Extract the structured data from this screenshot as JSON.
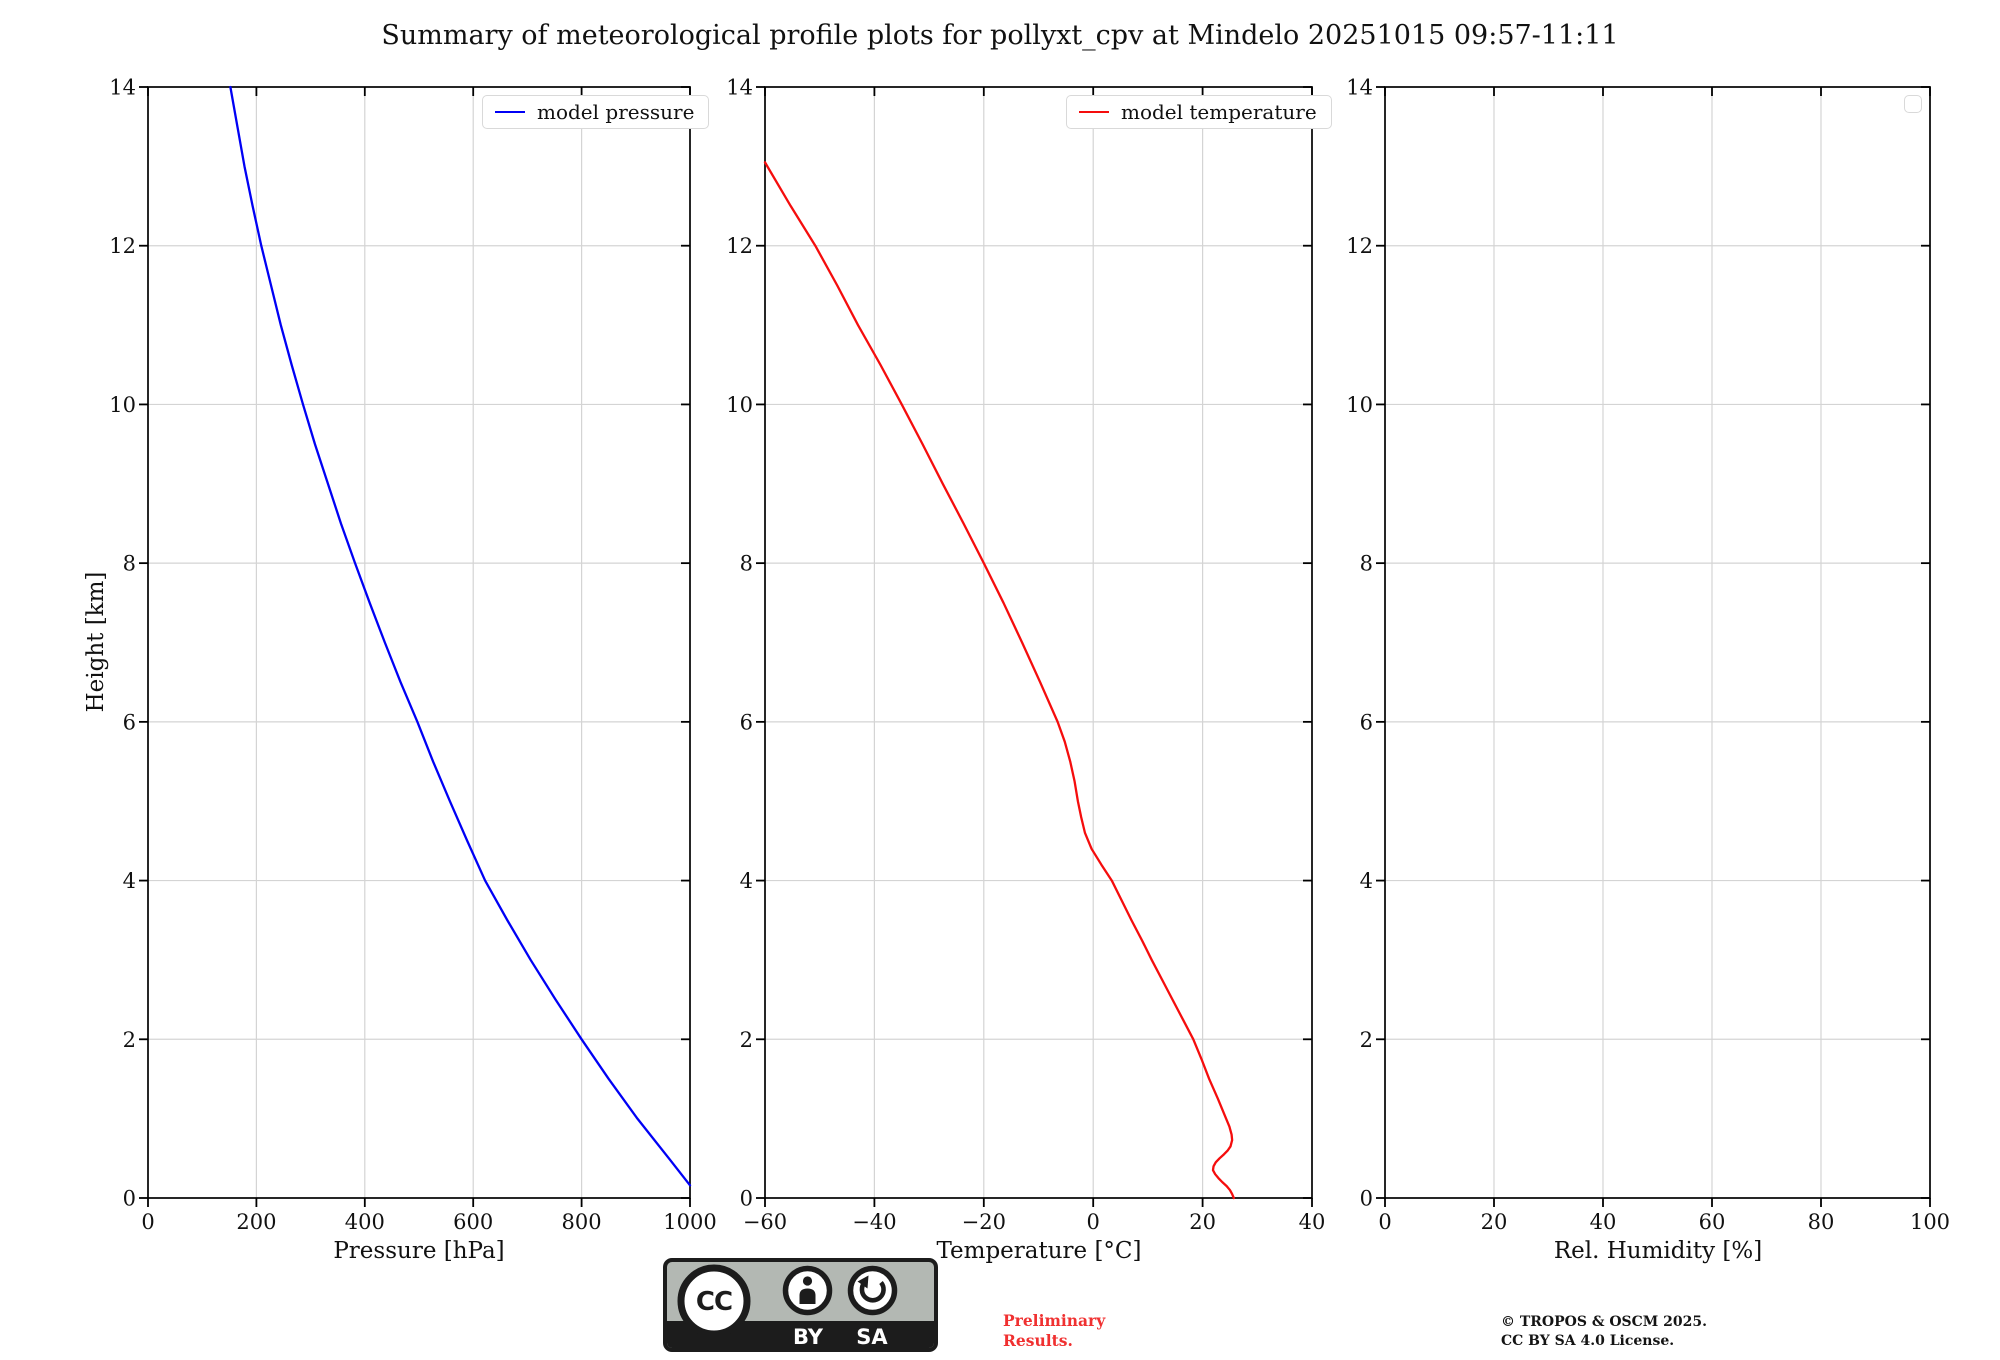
{
  "title": "Summary of meteorological profile plots for pollyxt_cpv at Mindelo 20251015 09:57-11:11",
  "ylabel": "Height [km]",
  "colors": {
    "pressure_line": "#0000f5",
    "temperature_line": "#f50d0d",
    "grid": "#d4d4d4",
    "spine": "#000000",
    "preliminary_text": "#f03030",
    "badge_gray": "#b3b8b3",
    "badge_black": "#1c1c1c"
  },
  "chart_data": [
    {
      "type": "line",
      "name": "pressure",
      "xlabel": "Pressure [hPa]",
      "ylabel": "Height [km]",
      "xlim": [
        0,
        1000
      ],
      "ylim": [
        0,
        14
      ],
      "xticks": [
        0,
        200,
        400,
        600,
        800,
        1000
      ],
      "yticks": [
        0,
        2,
        4,
        6,
        8,
        10,
        12,
        14
      ],
      "grid": true,
      "legend_position": "upper right",
      "series": [
        {
          "name": "model pressure",
          "color_key": "pressure_line",
          "x": [
            1000,
            961,
            903,
            850,
            800,
            752,
            706,
            663,
            622,
            589,
            557,
            526,
            497,
            466,
            437,
            409,
            382,
            356,
            332,
            308,
            286,
            265,
            245,
            227,
            209,
            193,
            178,
            165,
            152
          ],
          "y": [
            0.16,
            0.5,
            1,
            1.5,
            2,
            2.5,
            3,
            3.5,
            4,
            4.5,
            5,
            5.5,
            6,
            6.5,
            7,
            7.5,
            8,
            8.5,
            9,
            9.5,
            10,
            10.5,
            11,
            11.5,
            12,
            12.5,
            13,
            13.5,
            14
          ]
        }
      ]
    },
    {
      "type": "line",
      "name": "temperature",
      "xlabel": "Temperature [°C]",
      "ylabel": "Height [km]",
      "xlim": [
        -60,
        40
      ],
      "ylim": [
        0,
        14
      ],
      "xticks": [
        -60,
        -40,
        -20,
        0,
        20,
        40
      ],
      "yticks": [
        0,
        2,
        4,
        6,
        8,
        10,
        12,
        14
      ],
      "grid": true,
      "legend_position": "upper right",
      "series": [
        {
          "name": "model temperature",
          "color_key": "temperature_line",
          "x": [
            25.7,
            25.4,
            25.0,
            24.4,
            23.6,
            22.9,
            22.3,
            21.9,
            22.0,
            22.4,
            23.1,
            23.9,
            24.6,
            25.1,
            25.4,
            25.3,
            24.9,
            24.3,
            22.8,
            21.2,
            19.8,
            18.3,
            16.4,
            14.5,
            12.6,
            10.7,
            8.9,
            7.0,
            5.2,
            3.4,
            1.5,
            -0.3,
            -1.5,
            -2.2,
            -2.8,
            -3.4,
            -4.2,
            -5.2,
            -6.5,
            -9.7,
            -13.0,
            -16.4,
            -20.0,
            -23.7,
            -27.5,
            -31.2,
            -35.0,
            -38.9,
            -43.0,
            -46.8,
            -50.8,
            -55.3,
            -60.0
          ],
          "y": [
            0,
            0.05,
            0.1,
            0.15,
            0.2,
            0.25,
            0.3,
            0.35,
            0.4,
            0.45,
            0.5,
            0.55,
            0.6,
            0.65,
            0.73,
            0.8,
            0.9,
            1,
            1.25,
            1.5,
            1.75,
            2,
            2.25,
            2.5,
            2.75,
            3,
            3.25,
            3.5,
            3.75,
            4,
            4.2,
            4.4,
            4.6,
            4.8,
            5,
            5.25,
            5.5,
            5.75,
            6,
            6.5,
            7,
            7.5,
            8,
            8.5,
            9,
            9.5,
            10,
            10.5,
            11,
            11.5,
            12,
            12.5,
            13.05
          ]
        }
      ]
    },
    {
      "type": "line",
      "name": "humidity",
      "xlabel": "Rel. Humidity [%]",
      "ylabel": "Height [km]",
      "xlim": [
        0,
        100
      ],
      "ylim": [
        0,
        14
      ],
      "xticks": [
        0,
        20,
        40,
        60,
        80,
        100
      ],
      "yticks": [
        0,
        2,
        4,
        6,
        8,
        10,
        12,
        14
      ],
      "grid": true,
      "legend_position": "upper right",
      "series": []
    }
  ],
  "footer": {
    "preliminary_line1": "Preliminary",
    "preliminary_line2": "Results.",
    "copyright_line1": "© TROPOS & OSCM 2025.",
    "copyright_line2": "CC BY SA 4.0 License.",
    "cc_badge": {
      "cc_label": "CC",
      "by_label": "BY",
      "sa_label": "SA"
    }
  }
}
